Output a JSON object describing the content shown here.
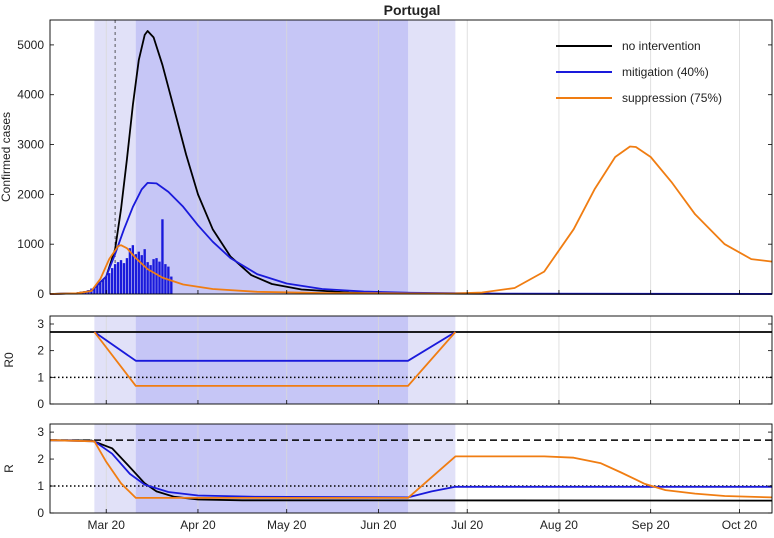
{
  "figure": {
    "title": "Portugal"
  },
  "chart_data": [
    {
      "type": "line",
      "id": "cases",
      "title": "Portugal",
      "ylabel": "Confirmed cases",
      "xlim": [
        "2020-03-01",
        "2020-10-31"
      ],
      "ylim": [
        0,
        5500
      ],
      "yticks": [
        0,
        1000,
        2000,
        3000,
        4000,
        5000
      ],
      "x_tick_labels": [
        "Mar 20",
        "Apr 20",
        "May 20",
        "Jun 20",
        "Jul 20",
        "Aug 20",
        "Sep 20",
        "Oct 20"
      ],
      "x_tick_dates": [
        "2020-03-20",
        "2020-04-20",
        "2020-05-20",
        "2020-06-20",
        "2020-07-20",
        "2020-08-20",
        "2020-09-20",
        "2020-10-20"
      ],
      "shaded_periods": [
        {
          "from": "2020-03-16",
          "to": "2020-07-16",
          "shade": "light"
        },
        {
          "from": "2020-03-30",
          "to": "2020-06-30",
          "shade": "dark"
        }
      ],
      "vline_date": "2020-03-23",
      "legend_position": "top-right",
      "series": [
        {
          "name": "no intervention",
          "color": "#000000",
          "points": [
            [
              "2020-03-01",
              0
            ],
            [
              "2020-03-10",
              15
            ],
            [
              "2020-03-15",
              60
            ],
            [
              "2020-03-20",
              350
            ],
            [
              "2020-03-23",
              900
            ],
            [
              "2020-03-25",
              1700
            ],
            [
              "2020-03-27",
              2700
            ],
            [
              "2020-03-29",
              3800
            ],
            [
              "2020-03-31",
              4700
            ],
            [
              "2020-04-02",
              5200
            ],
            [
              "2020-04-03",
              5280
            ],
            [
              "2020-04-05",
              5150
            ],
            [
              "2020-04-08",
              4600
            ],
            [
              "2020-04-12",
              3700
            ],
            [
              "2020-04-16",
              2800
            ],
            [
              "2020-04-20",
              2000
            ],
            [
              "2020-04-25",
              1300
            ],
            [
              "2020-05-01",
              750
            ],
            [
              "2020-05-08",
              380
            ],
            [
              "2020-05-15",
              200
            ],
            [
              "2020-05-25",
              90
            ],
            [
              "2020-06-10",
              30
            ],
            [
              "2020-07-01",
              10
            ],
            [
              "2020-08-01",
              2
            ],
            [
              "2020-10-31",
              0
            ]
          ]
        },
        {
          "name": "mitigation (40%)",
          "color": "#1a1adb",
          "points": [
            [
              "2020-03-01",
              0
            ],
            [
              "2020-03-10",
              15
            ],
            [
              "2020-03-15",
              60
            ],
            [
              "2020-03-20",
              350
            ],
            [
              "2020-03-23",
              800
            ],
            [
              "2020-03-26",
              1300
            ],
            [
              "2020-03-29",
              1750
            ],
            [
              "2020-04-01",
              2100
            ],
            [
              "2020-04-03",
              2230
            ],
            [
              "2020-04-06",
              2220
            ],
            [
              "2020-04-10",
              2050
            ],
            [
              "2020-04-15",
              1750
            ],
            [
              "2020-04-20",
              1380
            ],
            [
              "2020-04-25",
              1050
            ],
            [
              "2020-05-01",
              720
            ],
            [
              "2020-05-10",
              400
            ],
            [
              "2020-05-20",
              210
            ],
            [
              "2020-06-01",
              100
            ],
            [
              "2020-06-15",
              50
            ],
            [
              "2020-07-01",
              25
            ],
            [
              "2020-08-01",
              8
            ],
            [
              "2020-10-31",
              2
            ]
          ]
        },
        {
          "name": "suppression (75%)",
          "color": "#f07d12",
          "points": [
            [
              "2020-03-01",
              0
            ],
            [
              "2020-03-10",
              15
            ],
            [
              "2020-03-15",
              60
            ],
            [
              "2020-03-18",
              300
            ],
            [
              "2020-03-21",
              700
            ],
            [
              "2020-03-24",
              960
            ],
            [
              "2020-03-25",
              980
            ],
            [
              "2020-03-27",
              920
            ],
            [
              "2020-03-30",
              720
            ],
            [
              "2020-04-03",
              500
            ],
            [
              "2020-04-08",
              330
            ],
            [
              "2020-04-15",
              190
            ],
            [
              "2020-04-25",
              100
            ],
            [
              "2020-05-10",
              45
            ],
            [
              "2020-06-01",
              20
            ],
            [
              "2020-07-01",
              10
            ],
            [
              "2020-07-16",
              12
            ],
            [
              "2020-07-25",
              30
            ],
            [
              "2020-08-05",
              120
            ],
            [
              "2020-08-15",
              450
            ],
            [
              "2020-08-25",
              1300
            ],
            [
              "2020-09-01",
              2100
            ],
            [
              "2020-09-08",
              2750
            ],
            [
              "2020-09-13",
              2960
            ],
            [
              "2020-09-15",
              2950
            ],
            [
              "2020-09-20",
              2750
            ],
            [
              "2020-09-27",
              2250
            ],
            [
              "2020-10-05",
              1600
            ],
            [
              "2020-10-15",
              1000
            ],
            [
              "2020-10-24",
              700
            ],
            [
              "2020-10-31",
              650
            ]
          ]
        }
      ],
      "reported_daily_cases": {
        "color": "#1a1adb",
        "start": "2020-03-02",
        "values": [
          1,
          2,
          3,
          4,
          5,
          8,
          10,
          15,
          20,
          30,
          40,
          60,
          80,
          110,
          140,
          180,
          220,
          280,
          350,
          420,
          520,
          600,
          640,
          680,
          620,
          720,
          920,
          980,
          800,
          850,
          780,
          900,
          640,
          580,
          700,
          720,
          650,
          1500,
          600,
          550,
          350
        ]
      }
    },
    {
      "type": "line",
      "id": "r0",
      "ylabel": "R0",
      "ylim": [
        0,
        3.3
      ],
      "yticks": [
        0,
        1,
        2,
        3
      ],
      "series": [
        {
          "name": "no intervention",
          "color": "#000000",
          "points": [
            [
              "2020-03-01",
              2.7
            ],
            [
              "2020-10-31",
              2.7
            ]
          ]
        },
        {
          "name": "mitigation (40%)",
          "color": "#1a1adb",
          "points": [
            [
              "2020-03-16",
              2.7
            ],
            [
              "2020-03-30",
              1.62
            ],
            [
              "2020-06-30",
              1.62
            ],
            [
              "2020-07-16",
              2.7
            ]
          ]
        },
        {
          "name": "suppression (75%)",
          "color": "#f07d12",
          "points": [
            [
              "2020-03-16",
              2.7
            ],
            [
              "2020-03-30",
              0.68
            ],
            [
              "2020-06-30",
              0.68
            ],
            [
              "2020-07-16",
              2.7
            ]
          ]
        }
      ],
      "reference_line": {
        "y": 1,
        "style": "dotted"
      }
    },
    {
      "type": "line",
      "id": "r",
      "ylabel": "R",
      "ylim": [
        0,
        3.3
      ],
      "yticks": [
        0,
        1,
        2,
        3
      ],
      "series": [
        {
          "name": "no intervention",
          "color": "#000000",
          "points": [
            [
              "2020-03-01",
              2.7
            ],
            [
              "2020-03-15",
              2.69
            ],
            [
              "2020-03-22",
              2.4
            ],
            [
              "2020-03-28",
              1.7
            ],
            [
              "2020-04-02",
              1.1
            ],
            [
              "2020-04-06",
              0.8
            ],
            [
              "2020-04-12",
              0.6
            ],
            [
              "2020-04-20",
              0.5
            ],
            [
              "2020-05-05",
              0.47
            ],
            [
              "2020-10-31",
              0.46
            ]
          ]
        },
        {
          "name": "mitigation (40%)",
          "color": "#1a1adb",
          "points": [
            [
              "2020-03-01",
              2.7
            ],
            [
              "2020-03-16",
              2.66
            ],
            [
              "2020-03-22",
              2.2
            ],
            [
              "2020-03-28",
              1.45
            ],
            [
              "2020-04-02",
              1.05
            ],
            [
              "2020-04-10",
              0.78
            ],
            [
              "2020-04-20",
              0.65
            ],
            [
              "2020-05-10",
              0.6
            ],
            [
              "2020-06-30",
              0.58
            ],
            [
              "2020-07-08",
              0.8
            ],
            [
              "2020-07-16",
              0.97
            ],
            [
              "2020-10-31",
              0.97
            ]
          ]
        },
        {
          "name": "suppression (75%)",
          "color": "#f07d12",
          "points": [
            [
              "2020-03-01",
              2.7
            ],
            [
              "2020-03-16",
              2.66
            ],
            [
              "2020-03-20",
              1.9
            ],
            [
              "2020-03-25",
              1.1
            ],
            [
              "2020-03-30",
              0.56
            ],
            [
              "2020-06-30",
              0.56
            ],
            [
              "2020-07-16",
              2.1
            ],
            [
              "2020-08-15",
              2.1
            ],
            [
              "2020-08-25",
              2.05
            ],
            [
              "2020-09-03",
              1.85
            ],
            [
              "2020-09-10",
              1.5
            ],
            [
              "2020-09-18",
              1.08
            ],
            [
              "2020-09-25",
              0.85
            ],
            [
              "2020-10-05",
              0.72
            ],
            [
              "2020-10-15",
              0.63
            ],
            [
              "2020-10-31",
              0.58
            ]
          ]
        }
      ],
      "reference_lines": [
        {
          "y": 1,
          "style": "dotted"
        },
        {
          "y": 2.7,
          "style": "dashed"
        }
      ]
    }
  ]
}
